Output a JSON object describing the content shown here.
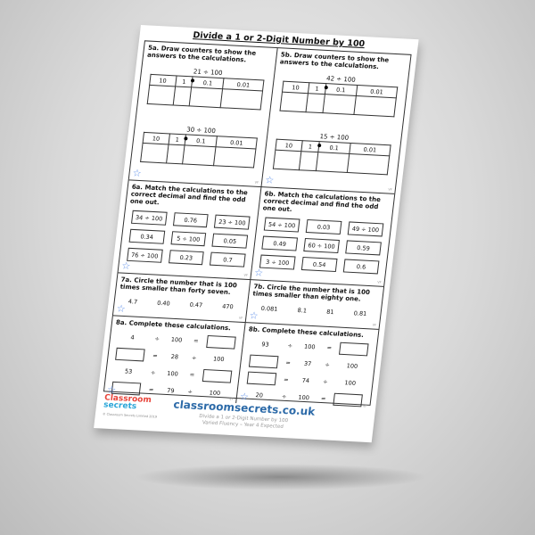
{
  "title": "Divide a 1 or 2-Digit Number by 100",
  "place_value_headers": [
    "10",
    "1",
    "0.1",
    "0.01"
  ],
  "q5a": {
    "question": "5a. Draw counters to show the answers to the calculations.",
    "calcs": [
      "21 ÷ 100",
      "30 ÷ 100"
    ]
  },
  "q5b": {
    "question": "5b. Draw counters to show the answers to the calculations.",
    "calcs": [
      "42 ÷ 100",
      "15 ÷ 100"
    ]
  },
  "q6a": {
    "question": "6a. Match the calculations to the correct decimal and find the odd one out.",
    "boxes": [
      "34 ÷ 100",
      "0.76",
      "23 ÷ 100",
      "0.34",
      "5 ÷ 100",
      "0.05",
      "76 ÷ 100",
      "0.23",
      "0.7"
    ]
  },
  "q6b": {
    "question": "6b. Match the calculations to the correct decimal and find the odd one out.",
    "boxes": [
      "54 ÷ 100",
      "0.03",
      "49 ÷ 100",
      "0.49",
      "60 ÷ 100",
      "0.59",
      "3 ÷ 100",
      "0.54",
      "0.6"
    ]
  },
  "q7a": {
    "question": "7a. Circle the number that is 100 times smaller than forty seven.",
    "options": [
      "4.7",
      "0.40",
      "0.47",
      "470"
    ]
  },
  "q7b": {
    "question": "7b. Circle the number that is 100 times smaller than eighty one.",
    "options": [
      "0.081",
      "8.1",
      "81",
      "0.81"
    ]
  },
  "q8a": {
    "question": "8a. Complete these calculations.",
    "rows": [
      [
        "4",
        "÷",
        "100",
        "=",
        ""
      ],
      [
        "",
        "=",
        "28",
        "÷",
        "100"
      ],
      [
        "53",
        "÷",
        "100",
        "=",
        ""
      ],
      [
        "",
        "=",
        "79",
        "÷",
        "100"
      ]
    ]
  },
  "q8b": {
    "question": "8b. Complete these calculations.",
    "rows": [
      [
        "93",
        "÷",
        "100",
        "=",
        ""
      ],
      [
        "",
        "=",
        "37",
        "÷",
        "100"
      ],
      [
        "",
        "=",
        "74",
        "÷",
        "100"
      ],
      [
        "20",
        "÷",
        "100",
        "=",
        ""
      ]
    ]
  },
  "vf_label": "VF",
  "footer": {
    "logo_line1": "Classroom",
    "logo_line2": "secrets",
    "copyright": "© Classroom Secrets Limited 2019",
    "website": "classroomsecrets.co.uk",
    "subtitle1": "Divide a 1 or 2-Digit Number by 100",
    "subtitle2": "Varied Fluency – Year 4 Expected"
  },
  "colors": {
    "star": "#5b8de8",
    "website": "#2c6aa8",
    "logo_red": "#e8443a",
    "logo_blue": "#2aa5d8"
  }
}
